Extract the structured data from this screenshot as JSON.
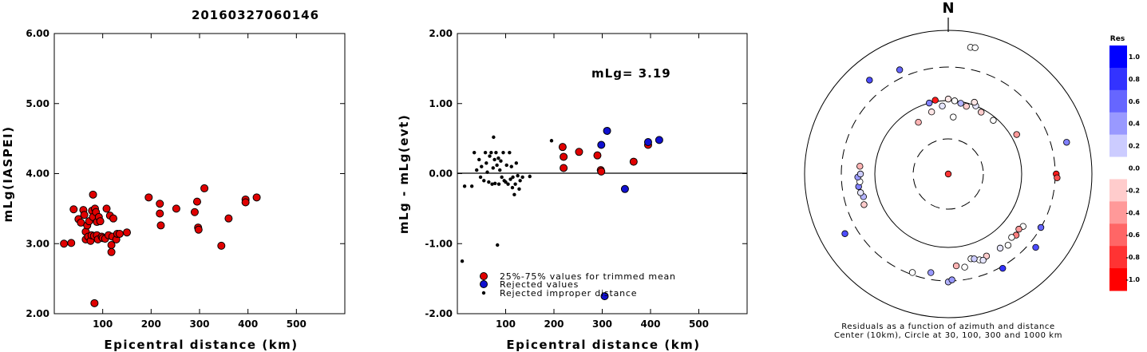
{
  "title": "20160327060146",
  "colors": {
    "red": "#e00000",
    "blue": "#1010d0",
    "black": "#000000"
  },
  "chart_data": [
    {
      "type": "scatter",
      "id": "mlg_vs_distance",
      "title": "",
      "xlabel": "Epicentral distance (km)",
      "ylabel": "mLg(IASPEI)",
      "xlim": [
        0,
        600
      ],
      "ylim": [
        2.0,
        6.0
      ],
      "xticks": [
        100,
        200,
        300,
        400,
        500
      ],
      "yticks": [
        "2.00",
        "3.00",
        "4.00",
        "5.00",
        "6.00"
      ],
      "yticks_values": [
        2,
        3,
        4,
        5,
        6
      ],
      "points": [
        {
          "x": 20,
          "y": 3.0
        },
        {
          "x": 35,
          "y": 3.01
        },
        {
          "x": 40,
          "y": 3.49
        },
        {
          "x": 50,
          "y": 3.35
        },
        {
          "x": 55,
          "y": 3.3
        },
        {
          "x": 60,
          "y": 3.48
        },
        {
          "x": 62,
          "y": 3.41
        },
        {
          "x": 65,
          "y": 3.17
        },
        {
          "x": 65,
          "y": 3.06
        },
        {
          "x": 68,
          "y": 3.26
        },
        {
          "x": 70,
          "y": 3.1
        },
        {
          "x": 72,
          "y": 3.32
        },
        {
          "x": 75,
          "y": 3.04
        },
        {
          "x": 77,
          "y": 3.12
        },
        {
          "x": 78,
          "y": 3.47
        },
        {
          "x": 80,
          "y": 3.7
        },
        {
          "x": 80,
          "y": 3.38
        },
        {
          "x": 82,
          "y": 3.11
        },
        {
          "x": 84,
          "y": 3.5
        },
        {
          "x": 86,
          "y": 3.45
        },
        {
          "x": 88,
          "y": 3.31
        },
        {
          "x": 88,
          "y": 3.12
        },
        {
          "x": 90,
          "y": 3.06
        },
        {
          "x": 92,
          "y": 3.38
        },
        {
          "x": 95,
          "y": 3.32
        },
        {
          "x": 98,
          "y": 3.1
        },
        {
          "x": 100,
          "y": 3.08
        },
        {
          "x": 105,
          "y": 3.07
        },
        {
          "x": 108,
          "y": 3.5
        },
        {
          "x": 112,
          "y": 3.12
        },
        {
          "x": 115,
          "y": 3.4
        },
        {
          "x": 118,
          "y": 2.98
        },
        {
          "x": 118,
          "y": 2.88
        },
        {
          "x": 120,
          "y": 3.1
        },
        {
          "x": 122,
          "y": 3.36
        },
        {
          "x": 128,
          "y": 3.06
        },
        {
          "x": 130,
          "y": 3.14
        },
        {
          "x": 135,
          "y": 3.14
        },
        {
          "x": 150,
          "y": 3.16
        },
        {
          "x": 83,
          "y": 2.15
        },
        {
          "x": 195,
          "y": 3.66
        },
        {
          "x": 218,
          "y": 3.57
        },
        {
          "x": 218,
          "y": 3.43
        },
        {
          "x": 220,
          "y": 3.26
        },
        {
          "x": 252,
          "y": 3.5
        },
        {
          "x": 290,
          "y": 3.45
        },
        {
          "x": 295,
          "y": 3.6
        },
        {
          "x": 297,
          "y": 3.23
        },
        {
          "x": 298,
          "y": 3.2
        },
        {
          "x": 310,
          "y": 3.79
        },
        {
          "x": 345,
          "y": 2.97
        },
        {
          "x": 360,
          "y": 3.36
        },
        {
          "x": 395,
          "y": 3.63
        },
        {
          "x": 395,
          "y": 3.59
        },
        {
          "x": 418,
          "y": 3.66
        }
      ]
    },
    {
      "type": "scatter",
      "id": "residual_vs_distance",
      "title": "",
      "xlabel": "Epicentral distance (km)",
      "ylabel": "mLg - mLg(evt)",
      "xlim": [
        0,
        600
      ],
      "ylim": [
        -2.0,
        2.0
      ],
      "xticks": [
        100,
        200,
        300,
        400,
        500
      ],
      "yticks": [
        "-2.00",
        "-1.00",
        "0.00",
        "1.00",
        "2.00"
      ],
      "yticks_values": [
        -2,
        -1,
        0,
        1,
        2
      ],
      "zero_line": 0,
      "annotation": "mLg= 3.19",
      "legend_position": "bottom-left",
      "legend": [
        {
          "label": "25%-75% values for trimmed mean",
          "marker": "red"
        },
        {
          "label": "Rejected values",
          "marker": "blue"
        },
        {
          "label": "Rejected improper distance",
          "marker": "black"
        }
      ],
      "trimmed_mean": [
        {
          "x": 218,
          "y": 0.38
        },
        {
          "x": 220,
          "y": 0.24
        },
        {
          "x": 220,
          "y": 0.08
        },
        {
          "x": 252,
          "y": 0.31
        },
        {
          "x": 290,
          "y": 0.26
        },
        {
          "x": 297,
          "y": 0.05
        },
        {
          "x": 298,
          "y": 0.03
        },
        {
          "x": 365,
          "y": 0.17
        },
        {
          "x": 395,
          "y": 0.41
        }
      ],
      "rejected": [
        {
          "x": 298,
          "y": 0.41
        },
        {
          "x": 310,
          "y": 0.61
        },
        {
          "x": 347,
          "y": -0.22
        },
        {
          "x": 395,
          "y": 0.45
        },
        {
          "x": 418,
          "y": 0.48
        },
        {
          "x": 305,
          "y": -1.75
        }
      ],
      "rejected_distance": [
        {
          "x": 10,
          "y": -1.25
        },
        {
          "x": 15,
          "y": -0.18
        },
        {
          "x": 30,
          "y": -0.18
        },
        {
          "x": 35,
          "y": 0.3
        },
        {
          "x": 40,
          "y": 0.05
        },
        {
          "x": 45,
          "y": 0.2
        },
        {
          "x": 48,
          "y": -0.05
        },
        {
          "x": 50,
          "y": 0.1
        },
        {
          "x": 55,
          "y": -0.1
        },
        {
          "x": 58,
          "y": 0.3
        },
        {
          "x": 60,
          "y": 0.15
        },
        {
          "x": 62,
          "y": 0.02
        },
        {
          "x": 65,
          "y": -0.12
        },
        {
          "x": 67,
          "y": 0.25
        },
        {
          "x": 70,
          "y": 0.3
        },
        {
          "x": 72,
          "y": -0.15
        },
        {
          "x": 74,
          "y": 0.08
        },
        {
          "x": 75,
          "y": 0.52
        },
        {
          "x": 77,
          "y": 0.2
        },
        {
          "x": 78,
          "y": -0.14
        },
        {
          "x": 80,
          "y": 0.3
        },
        {
          "x": 82,
          "y": 0.12
        },
        {
          "x": 83,
          "y": -1.02
        },
        {
          "x": 85,
          "y": 0.22
        },
        {
          "x": 86,
          "y": -0.15
        },
        {
          "x": 88,
          "y": 0.05
        },
        {
          "x": 90,
          "y": 0.18
        },
        {
          "x": 92,
          "y": -0.05
        },
        {
          "x": 95,
          "y": 0.3
        },
        {
          "x": 97,
          "y": -0.1
        },
        {
          "x": 100,
          "y": -0.12
        },
        {
          "x": 102,
          "y": 0.12
        },
        {
          "x": 105,
          "y": -0.15
        },
        {
          "x": 108,
          "y": 0.3
        },
        {
          "x": 110,
          "y": -0.08
        },
        {
          "x": 112,
          "y": 0.1
        },
        {
          "x": 114,
          "y": -0.2
        },
        {
          "x": 115,
          "y": -0.05
        },
        {
          "x": 118,
          "y": -0.3
        },
        {
          "x": 120,
          "y": -0.15
        },
        {
          "x": 122,
          "y": 0.15
        },
        {
          "x": 125,
          "y": -0.03
        },
        {
          "x": 128,
          "y": -0.22
        },
        {
          "x": 130,
          "y": -0.1
        },
        {
          "x": 135,
          "y": -0.05
        },
        {
          "x": 150,
          "y": -0.04
        },
        {
          "x": 195,
          "y": 0.47
        }
      ]
    },
    {
      "type": "scatter",
      "id": "azimuth_residual_polar",
      "title": "",
      "north_label": "N",
      "caption_line1": "Residuals as a function of azimuth and distance",
      "caption_line2": "Center (10km), Circle at 30, 100, 300 and 1000 km",
      "ring_distances_km": [
        30,
        100,
        300,
        1000
      ],
      "colorbar": {
        "title": "Res",
        "labels": [
          "1.0",
          "0.8",
          "0.6",
          "0.4",
          "0.2",
          "0.0",
          "-0.2",
          "-0.4",
          "-0.6",
          "-0.8",
          "-1.0"
        ],
        "range": [
          -1.0,
          1.0
        ],
        "positive_color": "#0000ff",
        "negative_color": "#ff0000"
      },
      "stations": [
        {
          "az": 0,
          "dist": 10,
          "res": -0.8
        },
        {
          "az": 350,
          "dist": 105,
          "res": -0.9
        },
        {
          "az": 345,
          "dist": 100,
          "res": 0.5
        },
        {
          "az": 0,
          "dist": 105,
          "res": -0.1
        },
        {
          "az": 5,
          "dist": 100,
          "res": 0.0
        },
        {
          "az": 10,
          "dist": 95,
          "res": 0.3
        },
        {
          "az": 355,
          "dist": 85,
          "res": 0.1
        },
        {
          "az": 15,
          "dist": 90,
          "res": -0.2
        },
        {
          "az": 22,
          "dist": 100,
          "res": 0.1
        },
        {
          "az": 28,
          "dist": 90,
          "res": -0.2
        },
        {
          "az": 20,
          "dist": 110,
          "res": -0.1
        },
        {
          "az": 40,
          "dist": 90,
          "res": 0.0
        },
        {
          "az": 345,
          "dist": 75,
          "res": -0.1
        },
        {
          "az": 330,
          "dist": 65,
          "res": -0.3
        },
        {
          "az": 5,
          "dist": 60,
          "res": 0.0
        },
        {
          "az": 60,
          "dist": 120,
          "res": -0.4
        },
        {
          "az": 90,
          "dist": 310,
          "res": -0.9
        },
        {
          "az": 92,
          "dist": 320,
          "res": -0.7
        },
        {
          "az": 75,
          "dist": 500,
          "res": 0.5
        },
        {
          "az": 120,
          "dist": 300,
          "res": 0.6
        },
        {
          "az": 130,
          "dist": 380,
          "res": 0.7
        },
        {
          "az": 125,
          "dist": 180,
          "res": 0.0
        },
        {
          "az": 128,
          "dist": 170,
          "res": -0.4
        },
        {
          "az": 132,
          "dist": 180,
          "res": -0.5
        },
        {
          "az": 135,
          "dist": 170,
          "res": 0.0
        },
        {
          "az": 140,
          "dist": 190,
          "res": 0.0
        },
        {
          "az": 145,
          "dist": 175,
          "res": 0.1
        },
        {
          "az": 155,
          "dist": 175,
          "res": -0.2
        },
        {
          "az": 165,
          "dist": 160,
          "res": 0.0
        },
        {
          "az": 160,
          "dist": 180,
          "res": 0.0
        },
        {
          "az": 158,
          "dist": 190,
          "res": 0.1
        },
        {
          "az": 163,
          "dist": 165,
          "res": 0.2
        },
        {
          "az": 170,
          "dist": 200,
          "res": 0.0
        },
        {
          "az": 175,
          "dist": 185,
          "res": -0.3
        },
        {
          "az": 180,
          "dist": 310,
          "res": 0.3
        },
        {
          "az": 178,
          "dist": 290,
          "res": 0.4
        },
        {
          "az": 150,
          "dist": 320,
          "res": 0.8
        },
        {
          "az": 190,
          "dist": 240,
          "res": 0.4
        },
        {
          "az": 200,
          "dist": 280,
          "res": 0.0
        },
        {
          "az": 250,
          "dist": 170,
          "res": -0.2
        },
        {
          "az": 255,
          "dist": 160,
          "res": 0.3
        },
        {
          "az": 258,
          "dist": 170,
          "res": 0.1
        },
        {
          "az": 262,
          "dist": 175,
          "res": 0.5
        },
        {
          "az": 265,
          "dist": 165,
          "res": 0.0
        },
        {
          "az": 268,
          "dist": 175,
          "res": 0.4
        },
        {
          "az": 270,
          "dist": 160,
          "res": 0.2
        },
        {
          "az": 275,
          "dist": 165,
          "res": -0.3
        },
        {
          "az": 240,
          "dist": 450,
          "res": 0.7
        },
        {
          "az": 320,
          "dist": 500,
          "res": 0.7
        },
        {
          "az": 335,
          "dist": 390,
          "res": 0.6
        },
        {
          "az": 10,
          "dist": 610,
          "res": 0.0
        },
        {
          "az": 12,
          "dist": 620,
          "res": 0.0
        }
      ]
    }
  ]
}
